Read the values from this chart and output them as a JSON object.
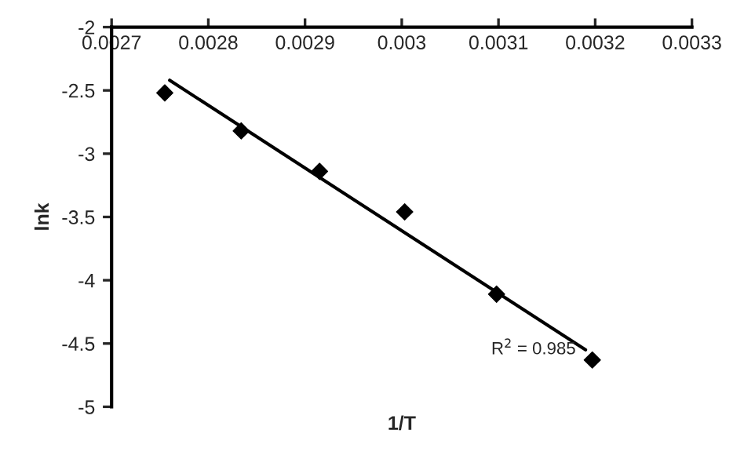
{
  "chart_data": {
    "type": "scatter",
    "xlabel": "1/T",
    "ylabel": "lnk",
    "series": [
      {
        "color": "#000000",
        "marker": "diamond",
        "x": [
          0.002755,
          0.002834,
          0.002915,
          0.003003,
          0.003098,
          0.003197
        ],
        "values": [
          -2.52,
          -2.82,
          -3.14,
          -3.46,
          -4.11,
          -4.63
        ]
      },
      {
        "type": "line",
        "color": "#000000",
        "marker": "none",
        "line_style": "solid",
        "x": [
          0.00276,
          0.00319
        ],
        "values": [
          -2.42,
          -4.55
        ]
      }
    ],
    "annotations": [
      "R$^{2}$ = 0.985"
    ],
    "xlim": [
      0.0027,
      0.0033
    ],
    "xticks": [
      0.0027,
      0.0028,
      0.0029,
      0.003,
      0.0031,
      0.0032,
      0.0033
    ],
    "ylim": [
      -5,
      -2
    ],
    "yticks": [
      -5,
      -4.5,
      -4,
      -3.5,
      -3,
      -2.5,
      -2
    ],
    "grid": false,
    "legend": false
  }
}
